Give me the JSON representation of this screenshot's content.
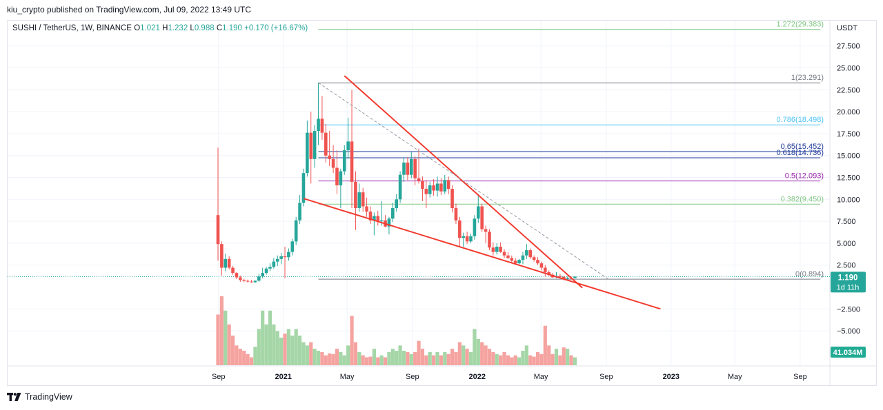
{
  "publisher_line": "kiu_crypto published on TradingView.com, Jul 09, 2022 13:49 UTC",
  "legend": {
    "symbol": "SUSHI / TetherUS, 1W, BINANCE",
    "open_label": "O",
    "open": "1.021",
    "high_label": "H",
    "high": "1.232",
    "low_label": "L",
    "low": "0.988",
    "close_label": "C",
    "close": "1.190",
    "change": "+0.170 (+16.67%)"
  },
  "footer": {
    "brand": "TradingView"
  },
  "colors": {
    "up": "#26a69a",
    "down": "#ef5350",
    "vol_up": "#a5d6a7",
    "vol_down": "#f5a3a0",
    "trend": "#f23a2f",
    "dashed": "#9598a1",
    "badge_price": "#26a69a",
    "badge_volume": "#22ab94"
  },
  "chart_data": {
    "type": "candlestick",
    "symbol": "SUSHI / TetherUS",
    "interval": "1W",
    "exchange": "BINANCE",
    "y_axis_unit": "USDT",
    "y_ticks": [
      27.5,
      25.0,
      22.5,
      20.0,
      17.5,
      15.0,
      12.5,
      10.0,
      7.5,
      5.0,
      2.5,
      -2.5,
      -5.0
    ],
    "y_tick_labels": [
      "27.500",
      "25.000",
      "22.500",
      "20.000",
      "17.500",
      "15.000",
      "12.500",
      "10.000",
      "7.500",
      "5.000",
      "2.500",
      "−2.500",
      "−5.000"
    ],
    "ylim": [
      -8,
      30
    ],
    "x_ticks": [
      {
        "label": "Sep",
        "date": "2020-09-01"
      },
      {
        "label": "2021",
        "date": "2021-01-01"
      },
      {
        "label": "May",
        "date": "2021-05-01"
      },
      {
        "label": "Sep",
        "date": "2021-09-01"
      },
      {
        "label": "2022",
        "date": "2022-01-01"
      },
      {
        "label": "May",
        "date": "2022-05-01"
      },
      {
        "label": "Sep",
        "date": "2022-09-01"
      },
      {
        "label": "2023",
        "date": "2023-01-01"
      },
      {
        "label": "May",
        "date": "2023-05-01"
      },
      {
        "label": "Sep",
        "date": "2023-09-01"
      }
    ],
    "xlim": [
      "2020-08-22",
      "2023-10-18"
    ],
    "last_price": "1.190",
    "bar_countdown": "1d 11h",
    "last_volume": "41.034M",
    "fibonacci": {
      "range": [
        "2021-03-08",
        "2023-10-09"
      ],
      "levels": [
        {
          "label": "1.272(29.383)",
          "value": 29.383,
          "color": "#81c784"
        },
        {
          "label": "1(23.291)",
          "value": 23.291,
          "color": "#787b86"
        },
        {
          "label": "0.786(18.498)",
          "value": 18.498,
          "color": "#4fc3f7"
        },
        {
          "label": "0.65(15.452)",
          "value": 15.452,
          "color": "#1e3a9a"
        },
        {
          "label": "0.618(14.736)",
          "value": 14.736,
          "color": "#1e3a9a"
        },
        {
          "label": "0.5(12.093)",
          "value": 12.093,
          "color": "#9c27b0"
        },
        {
          "label": "0.382(9.450)",
          "value": 9.45,
          "color": "#81c784"
        },
        {
          "label": "0(0.894)",
          "value": 0.894,
          "color": "#787b86"
        }
      ]
    },
    "trendlines": [
      {
        "name": "upper",
        "from": {
          "date": "2021-04-26",
          "value": 24.1
        },
        "to": {
          "date": "2022-07-18",
          "value": -0.1
        }
      },
      {
        "name": "lower",
        "from": {
          "date": "2021-02-08",
          "value": 10.1
        },
        "to": {
          "date": "2022-12-12",
          "value": -2.5
        }
      },
      {
        "name": "diagonal",
        "from": {
          "date": "2021-03-08",
          "value": 23.3
        },
        "to": {
          "date": "2022-09-05",
          "value": 0.9
        }
      }
    ],
    "ohlcv": [
      {
        "date": "2020-08-31",
        "o": 8.2,
        "h": 15.9,
        "l": 3.0,
        "c": 4.9,
        "v": 77
      },
      {
        "date": "2020-09-07",
        "o": 4.9,
        "h": 5.2,
        "l": 1.3,
        "c": 2.2,
        "v": 105
      },
      {
        "date": "2020-09-14",
        "o": 2.2,
        "h": 3.8,
        "l": 1.8,
        "c": 3.2,
        "v": 83
      },
      {
        "date": "2020-09-21",
        "o": 3.2,
        "h": 3.5,
        "l": 2.0,
        "c": 2.2,
        "v": 62
      },
      {
        "date": "2020-09-28",
        "o": 2.2,
        "h": 2.4,
        "l": 1.4,
        "c": 1.6,
        "v": 45
      },
      {
        "date": "2020-10-05",
        "o": 1.6,
        "h": 1.7,
        "l": 0.9,
        "c": 1.1,
        "v": 30
      },
      {
        "date": "2020-10-12",
        "o": 1.1,
        "h": 1.3,
        "l": 0.6,
        "c": 0.8,
        "v": 25
      },
      {
        "date": "2020-10-19",
        "o": 0.8,
        "h": 0.95,
        "l": 0.55,
        "c": 0.7,
        "v": 22
      },
      {
        "date": "2020-10-26",
        "o": 0.7,
        "h": 0.85,
        "l": 0.5,
        "c": 0.62,
        "v": 17
      },
      {
        "date": "2020-11-02",
        "o": 0.62,
        "h": 0.8,
        "l": 0.48,
        "c": 0.55,
        "v": 12
      },
      {
        "date": "2020-11-09",
        "o": 0.55,
        "h": 0.75,
        "l": 0.45,
        "c": 0.72,
        "v": 28
      },
      {
        "date": "2020-11-16",
        "o": 0.72,
        "h": 1.5,
        "l": 0.6,
        "c": 1.2,
        "v": 55
      },
      {
        "date": "2020-11-23",
        "o": 1.2,
        "h": 2.2,
        "l": 1.0,
        "c": 1.6,
        "v": 83
      },
      {
        "date": "2020-11-30",
        "o": 1.6,
        "h": 2.3,
        "l": 1.4,
        "c": 2.1,
        "v": 62
      },
      {
        "date": "2020-12-07",
        "o": 2.1,
        "h": 2.7,
        "l": 1.8,
        "c": 2.3,
        "v": 83
      },
      {
        "date": "2020-12-14",
        "o": 2.3,
        "h": 3.3,
        "l": 2.1,
        "c": 2.9,
        "v": 62
      },
      {
        "date": "2020-12-21",
        "o": 2.9,
        "h": 3.6,
        "l": 2.4,
        "c": 3.2,
        "v": 52
      },
      {
        "date": "2020-12-28",
        "o": 3.2,
        "h": 3.9,
        "l": 2.6,
        "c": 3.5,
        "v": 42
      },
      {
        "date": "2021-01-04",
        "o": 3.5,
        "h": 4.6,
        "l": 1.0,
        "c": 3.4,
        "v": 48
      },
      {
        "date": "2021-01-11",
        "o": 3.4,
        "h": 4.4,
        "l": 3.0,
        "c": 4.0,
        "v": 55
      },
      {
        "date": "2021-01-18",
        "o": 4.0,
        "h": 5.5,
        "l": 3.6,
        "c": 5.2,
        "v": 45
      },
      {
        "date": "2021-01-25",
        "o": 5.2,
        "h": 8.0,
        "l": 4.8,
        "c": 7.6,
        "v": 55
      },
      {
        "date": "2021-02-01",
        "o": 7.6,
        "h": 10.5,
        "l": 7.2,
        "c": 9.6,
        "v": 45
      },
      {
        "date": "2021-02-08",
        "o": 9.6,
        "h": 13.5,
        "l": 9.2,
        "c": 13.0,
        "v": 35
      },
      {
        "date": "2021-02-15",
        "o": 13.0,
        "h": 19.0,
        "l": 12.6,
        "c": 17.6,
        "v": 30
      },
      {
        "date": "2021-02-22",
        "o": 17.6,
        "h": 20.0,
        "l": 11.8,
        "c": 14.6,
        "v": 35
      },
      {
        "date": "2021-03-01",
        "o": 14.6,
        "h": 18.5,
        "l": 13.6,
        "c": 17.8,
        "v": 25
      },
      {
        "date": "2021-03-08",
        "o": 17.8,
        "h": 23.3,
        "l": 16.2,
        "c": 19.2,
        "v": 22
      },
      {
        "date": "2021-03-15",
        "o": 19.2,
        "h": 21.8,
        "l": 16.8,
        "c": 17.6,
        "v": 20
      },
      {
        "date": "2021-03-22",
        "o": 17.6,
        "h": 18.6,
        "l": 14.2,
        "c": 15.0,
        "v": 15
      },
      {
        "date": "2021-03-29",
        "o": 15.0,
        "h": 17.8,
        "l": 13.8,
        "c": 14.6,
        "v": 18
      },
      {
        "date": "2021-04-05",
        "o": 14.6,
        "h": 16.2,
        "l": 13.0,
        "c": 13.6,
        "v": 17
      },
      {
        "date": "2021-04-12",
        "o": 13.6,
        "h": 15.6,
        "l": 10.6,
        "c": 11.6,
        "v": 25
      },
      {
        "date": "2021-04-19",
        "o": 11.6,
        "h": 13.5,
        "l": 9.0,
        "c": 13.2,
        "v": 20
      },
      {
        "date": "2021-04-26",
        "o": 13.2,
        "h": 16.2,
        "l": 12.8,
        "c": 15.6,
        "v": 15
      },
      {
        "date": "2021-05-03",
        "o": 15.6,
        "h": 19.3,
        "l": 14.6,
        "c": 16.6,
        "v": 30
      },
      {
        "date": "2021-05-10",
        "o": 16.6,
        "h": 22.5,
        "l": 9.0,
        "c": 12.0,
        "v": 75
      },
      {
        "date": "2021-05-17",
        "o": 12.0,
        "h": 13.2,
        "l": 6.5,
        "c": 9.0,
        "v": 35
      },
      {
        "date": "2021-05-24",
        "o": 9.0,
        "h": 11.8,
        "l": 8.6,
        "c": 10.8,
        "v": 20
      },
      {
        "date": "2021-05-31",
        "o": 10.8,
        "h": 11.3,
        "l": 8.6,
        "c": 9.2,
        "v": 15
      },
      {
        "date": "2021-06-07",
        "o": 9.2,
        "h": 10.2,
        "l": 8.0,
        "c": 8.6,
        "v": 12
      },
      {
        "date": "2021-06-14",
        "o": 8.6,
        "h": 9.2,
        "l": 7.2,
        "c": 7.6,
        "v": 13
      },
      {
        "date": "2021-06-21",
        "o": 7.6,
        "h": 8.5,
        "l": 5.9,
        "c": 8.1,
        "v": 25
      },
      {
        "date": "2021-06-28",
        "o": 8.1,
        "h": 8.7,
        "l": 7.0,
        "c": 7.5,
        "v": 12
      },
      {
        "date": "2021-07-05",
        "o": 7.5,
        "h": 9.8,
        "l": 7.0,
        "c": 7.6,
        "v": 15
      },
      {
        "date": "2021-07-12",
        "o": 7.6,
        "h": 8.2,
        "l": 6.8,
        "c": 6.9,
        "v": 12
      },
      {
        "date": "2021-07-19",
        "o": 6.9,
        "h": 8.0,
        "l": 6.0,
        "c": 7.8,
        "v": 20
      },
      {
        "date": "2021-07-26",
        "o": 7.8,
        "h": 9.6,
        "l": 7.4,
        "c": 9.0,
        "v": 25
      },
      {
        "date": "2021-08-02",
        "o": 9.0,
        "h": 10.6,
        "l": 8.6,
        "c": 10.0,
        "v": 22
      },
      {
        "date": "2021-08-09",
        "o": 10.0,
        "h": 13.2,
        "l": 9.6,
        "c": 12.8,
        "v": 30
      },
      {
        "date": "2021-08-16",
        "o": 12.8,
        "h": 14.8,
        "l": 12.0,
        "c": 14.2,
        "v": 22
      },
      {
        "date": "2021-08-23",
        "o": 14.2,
        "h": 14.8,
        "l": 12.2,
        "c": 12.8,
        "v": 20
      },
      {
        "date": "2021-08-30",
        "o": 12.8,
        "h": 15.4,
        "l": 12.4,
        "c": 14.6,
        "v": 17
      },
      {
        "date": "2021-09-06",
        "o": 14.6,
        "h": 14.9,
        "l": 11.6,
        "c": 12.4,
        "v": 20
      },
      {
        "date": "2021-09-13",
        "o": 12.4,
        "h": 15.8,
        "l": 11.8,
        "c": 12.1,
        "v": 37
      },
      {
        "date": "2021-09-20",
        "o": 12.1,
        "h": 12.6,
        "l": 9.8,
        "c": 11.2,
        "v": 25
      },
      {
        "date": "2021-09-27",
        "o": 11.2,
        "h": 12.2,
        "l": 9.0,
        "c": 10.6,
        "v": 15
      },
      {
        "date": "2021-10-04",
        "o": 10.6,
        "h": 12.0,
        "l": 10.2,
        "c": 11.6,
        "v": 20
      },
      {
        "date": "2021-10-11",
        "o": 11.6,
        "h": 12.3,
        "l": 10.4,
        "c": 11.0,
        "v": 15
      },
      {
        "date": "2021-10-18",
        "o": 11.0,
        "h": 12.6,
        "l": 10.3,
        "c": 11.8,
        "v": 20
      },
      {
        "date": "2021-10-25",
        "o": 11.8,
        "h": 12.4,
        "l": 10.5,
        "c": 10.9,
        "v": 15
      },
      {
        "date": "2021-11-01",
        "o": 10.9,
        "h": 12.8,
        "l": 10.6,
        "c": 12.2,
        "v": 20
      },
      {
        "date": "2021-11-08",
        "o": 12.2,
        "h": 12.6,
        "l": 10.6,
        "c": 11.2,
        "v": 17
      },
      {
        "date": "2021-11-15",
        "o": 11.2,
        "h": 11.6,
        "l": 8.5,
        "c": 9.0,
        "v": 25
      },
      {
        "date": "2021-11-22",
        "o": 9.0,
        "h": 9.5,
        "l": 7.2,
        "c": 7.6,
        "v": 20
      },
      {
        "date": "2021-11-29",
        "o": 7.6,
        "h": 8.0,
        "l": 4.6,
        "c": 5.6,
        "v": 35
      },
      {
        "date": "2021-12-06",
        "o": 5.6,
        "h": 6.2,
        "l": 4.6,
        "c": 5.8,
        "v": 30
      },
      {
        "date": "2021-12-13",
        "o": 5.8,
        "h": 6.3,
        "l": 4.9,
        "c": 5.2,
        "v": 25
      },
      {
        "date": "2021-12-20",
        "o": 5.2,
        "h": 6.1,
        "l": 5.0,
        "c": 5.8,
        "v": 20
      },
      {
        "date": "2021-12-27",
        "o": 5.8,
        "h": 8.2,
        "l": 5.4,
        "c": 7.8,
        "v": 55
      },
      {
        "date": "2022-01-03",
        "o": 7.8,
        "h": 10.6,
        "l": 7.3,
        "c": 9.2,
        "v": 40
      },
      {
        "date": "2022-01-10",
        "o": 9.2,
        "h": 9.5,
        "l": 6.3,
        "c": 6.6,
        "v": 35
      },
      {
        "date": "2022-01-17",
        "o": 6.6,
        "h": 7.0,
        "l": 5.0,
        "c": 6.3,
        "v": 30
      },
      {
        "date": "2022-01-24",
        "o": 6.3,
        "h": 6.6,
        "l": 4.2,
        "c": 4.5,
        "v": 25
      },
      {
        "date": "2022-01-31",
        "o": 4.5,
        "h": 5.1,
        "l": 3.6,
        "c": 4.0,
        "v": 20
      },
      {
        "date": "2022-02-07",
        "o": 4.0,
        "h": 5.0,
        "l": 3.7,
        "c": 4.6,
        "v": 17
      },
      {
        "date": "2022-02-14",
        "o": 4.6,
        "h": 5.1,
        "l": 3.9,
        "c": 4.0,
        "v": 15
      },
      {
        "date": "2022-02-21",
        "o": 4.0,
        "h": 4.3,
        "l": 3.3,
        "c": 3.6,
        "v": 20
      },
      {
        "date": "2022-02-28",
        "o": 3.6,
        "h": 4.0,
        "l": 3.2,
        "c": 3.3,
        "v": 15
      },
      {
        "date": "2022-03-07",
        "o": 3.3,
        "h": 3.6,
        "l": 2.8,
        "c": 3.0,
        "v": 12
      },
      {
        "date": "2022-03-14",
        "o": 3.0,
        "h": 3.3,
        "l": 2.6,
        "c": 2.7,
        "v": 15
      },
      {
        "date": "2022-03-21",
        "o": 2.7,
        "h": 3.2,
        "l": 2.6,
        "c": 3.1,
        "v": 12
      },
      {
        "date": "2022-03-28",
        "o": 3.1,
        "h": 4.0,
        "l": 2.6,
        "c": 3.6,
        "v": 22
      },
      {
        "date": "2022-04-04",
        "o": 3.6,
        "h": 4.9,
        "l": 3.2,
        "c": 4.2,
        "v": 30
      },
      {
        "date": "2022-04-11",
        "o": 4.2,
        "h": 4.4,
        "l": 3.2,
        "c": 3.4,
        "v": 15
      },
      {
        "date": "2022-04-18",
        "o": 3.4,
        "h": 3.6,
        "l": 2.9,
        "c": 3.1,
        "v": 13
      },
      {
        "date": "2022-04-25",
        "o": 3.1,
        "h": 3.4,
        "l": 2.5,
        "c": 2.7,
        "v": 20
      },
      {
        "date": "2022-05-02",
        "o": 2.7,
        "h": 2.9,
        "l": 1.9,
        "c": 2.2,
        "v": 17
      },
      {
        "date": "2022-05-09",
        "o": 2.2,
        "h": 2.5,
        "l": 1.2,
        "c": 1.7,
        "v": 60
      },
      {
        "date": "2022-05-16",
        "o": 1.7,
        "h": 1.9,
        "l": 1.25,
        "c": 1.4,
        "v": 30
      },
      {
        "date": "2022-05-23",
        "o": 1.4,
        "h": 1.6,
        "l": 1.05,
        "c": 1.1,
        "v": 17
      },
      {
        "date": "2022-05-30",
        "o": 1.1,
        "h": 1.7,
        "l": 1.0,
        "c": 1.25,
        "v": 25
      },
      {
        "date": "2022-06-06",
        "o": 1.25,
        "h": 1.5,
        "l": 1.1,
        "c": 1.15,
        "v": 15
      },
      {
        "date": "2022-06-13",
        "o": 1.15,
        "h": 1.3,
        "l": 0.75,
        "c": 0.92,
        "v": 27
      },
      {
        "date": "2022-06-20",
        "o": 0.92,
        "h": 1.2,
        "l": 0.85,
        "c": 1.0,
        "v": 25
      },
      {
        "date": "2022-06-27",
        "o": 1.0,
        "h": 1.2,
        "l": 0.9,
        "c": 0.98,
        "v": 15
      },
      {
        "date": "2022-07-04",
        "o": 1.021,
        "h": 1.232,
        "l": 0.988,
        "c": 1.19,
        "v": 12
      }
    ]
  }
}
